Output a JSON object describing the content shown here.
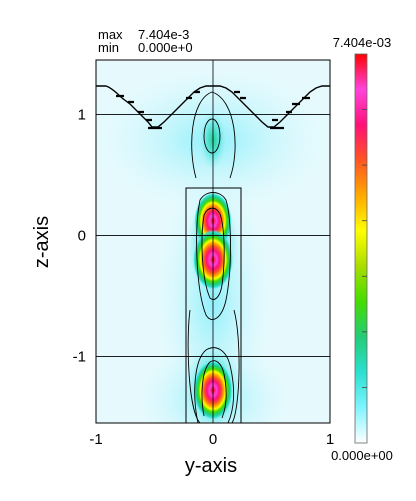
{
  "chart_data": {
    "type": "heatmap",
    "stats": {
      "max_label": "max",
      "max_value": "7.404e-3",
      "min_label": "min",
      "min_value": "0.000e+0"
    },
    "xlabel": "y-axis",
    "ylabel": "z-axis",
    "xlim": [
      -1,
      1
    ],
    "ylim": [
      -1.55,
      1.45
    ],
    "x_ticks": [
      -1,
      0,
      1
    ],
    "x_tick_labels": [
      "-1",
      "0",
      "1"
    ],
    "y_ticks": [
      1,
      0,
      -1
    ],
    "y_tick_labels": [
      "1",
      "0",
      "-1"
    ],
    "grid": true,
    "colorbar": {
      "max_label": "7.404e-03",
      "min_label": "0.000e+00",
      "range": [
        0.0,
        0.007404
      ],
      "colors": [
        "#ffffff",
        "#7ff4ff",
        "#2ae0d0",
        "#22cc77",
        "#44dd00",
        "#aadd00",
        "#ffff00",
        "#ffaa00",
        "#ff5522",
        "#ff1177",
        "#ff44dd",
        "#ff0000"
      ]
    },
    "structure": {
      "waveguide_y": [
        -0.23,
        0.23
      ],
      "waveguide_z": [
        -1.55,
        0.47
      ],
      "top_surface_z": 1.35,
      "dips_y": [
        -0.5,
        0.0,
        0.5
      ]
    },
    "hotspots": [
      {
        "y": 0.0,
        "z": 0.92,
        "value": 0.0011
      },
      {
        "y": 0.0,
        "z": 0.12,
        "value": 0.0068
      },
      {
        "y": 0.0,
        "z": -0.2,
        "value": 0.0074
      },
      {
        "y": 0.0,
        "z": -1.28,
        "value": 0.0072
      }
    ]
  },
  "colors": {
    "background": "#ffffff",
    "field_base": "#ffffff",
    "field_low": "#cff5fb"
  }
}
